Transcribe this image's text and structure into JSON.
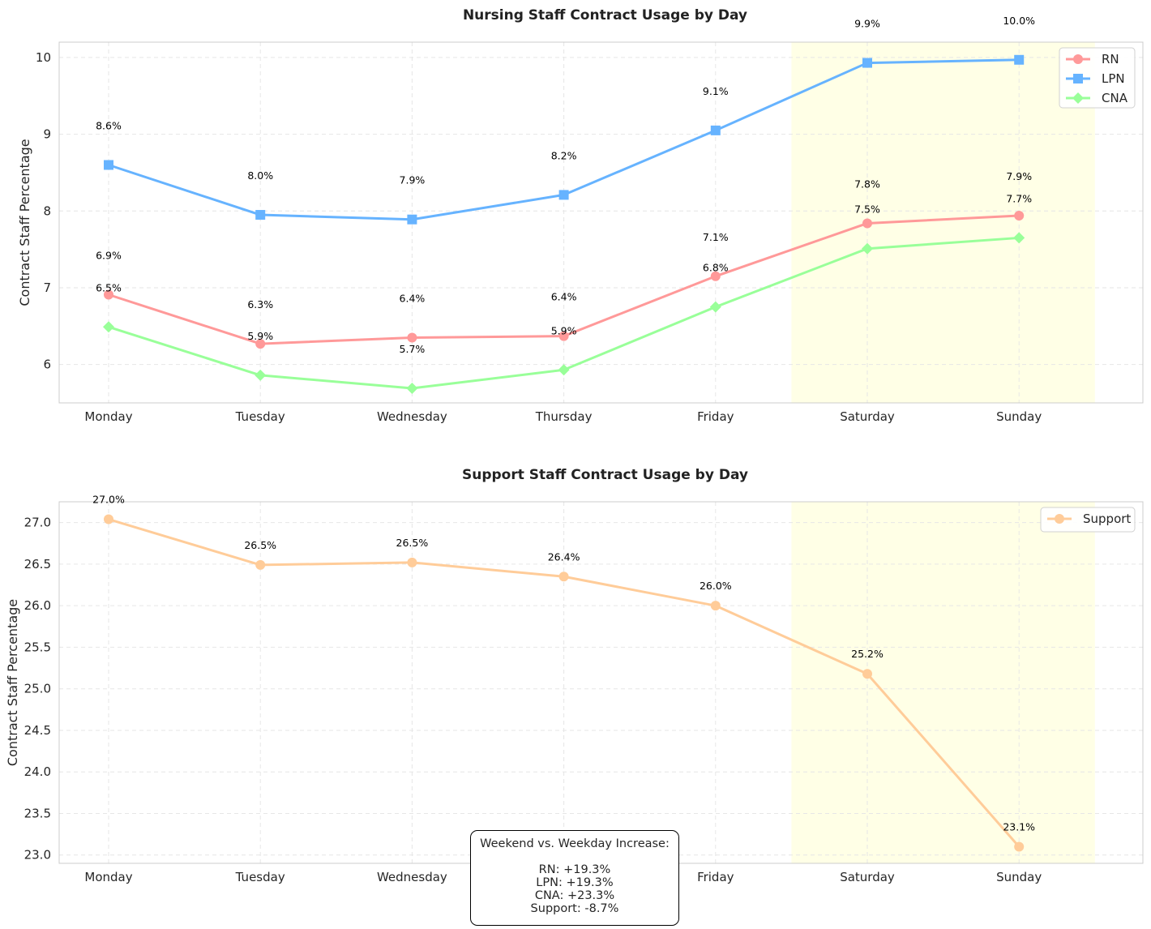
{
  "chart_data": [
    {
      "type": "line",
      "title": "Nursing Staff Contract Usage by Day",
      "xlabel": "",
      "ylabel": "Contract Staff Percentage",
      "categories": [
        "Monday",
        "Tuesday",
        "Wednesday",
        "Thursday",
        "Friday",
        "Saturday",
        "Sunday"
      ],
      "ylim": [
        5.5,
        10.2
      ],
      "yticks": [
        6,
        7,
        8,
        9,
        10
      ],
      "highlight_categories": [
        "Saturday",
        "Sunday"
      ],
      "highlight_color": "#ffffe6",
      "grid": true,
      "legend": "top-right",
      "series": [
        {
          "name": "RN",
          "color": "#ff9999",
          "marker": "circle",
          "values": [
            6.91,
            6.27,
            6.35,
            6.37,
            7.15,
            7.84,
            7.94
          ],
          "labels": [
            "6.9%",
            "6.3%",
            "6.4%",
            "6.4%",
            "7.1%",
            "7.8%",
            "7.9%"
          ]
        },
        {
          "name": "LPN",
          "color": "#66b3ff",
          "marker": "square",
          "values": [
            8.6,
            7.95,
            7.89,
            8.21,
            9.05,
            9.93,
            9.97
          ],
          "labels": [
            "8.6%",
            "8.0%",
            "7.9%",
            "8.2%",
            "9.1%",
            "9.9%",
            "10.0%"
          ]
        },
        {
          "name": "CNA",
          "color": "#99ff99",
          "marker": "diamond",
          "values": [
            6.49,
            5.86,
            5.69,
            5.93,
            6.75,
            7.51,
            7.65
          ],
          "labels": [
            "6.5%",
            "5.9%",
            "5.7%",
            "5.9%",
            "6.8%",
            "7.5%",
            "7.7%"
          ]
        }
      ]
    },
    {
      "type": "line",
      "title": "Support Staff Contract Usage by Day",
      "xlabel": "",
      "ylabel": "Contract Staff Percentage",
      "categories": [
        "Monday",
        "Tuesday",
        "Wednesday",
        "Thursday",
        "Friday",
        "Saturday",
        "Sunday"
      ],
      "ylim": [
        22.9,
        27.25
      ],
      "yticks": [
        23.0,
        23.5,
        24.0,
        24.5,
        25.0,
        25.5,
        26.0,
        26.5,
        27.0
      ],
      "highlight_categories": [
        "Saturday",
        "Sunday"
      ],
      "highlight_color": "#ffffe6",
      "grid": true,
      "legend": "top-right",
      "series": [
        {
          "name": "Support",
          "color": "#ffcc99",
          "marker": "circle",
          "values": [
            27.04,
            26.49,
            26.52,
            26.35,
            26.0,
            25.18,
            23.1
          ],
          "labels": [
            "27.0%",
            "26.5%",
            "26.5%",
            "26.4%",
            "26.0%",
            "25.2%",
            "23.1%"
          ]
        }
      ]
    }
  ],
  "annotation": {
    "heading": "Weekend vs. Weekday Increase:",
    "lines": [
      "RN: +19.3%",
      "LPN: +19.3%",
      "CNA: +23.3%",
      "Support: -8.7%"
    ]
  }
}
